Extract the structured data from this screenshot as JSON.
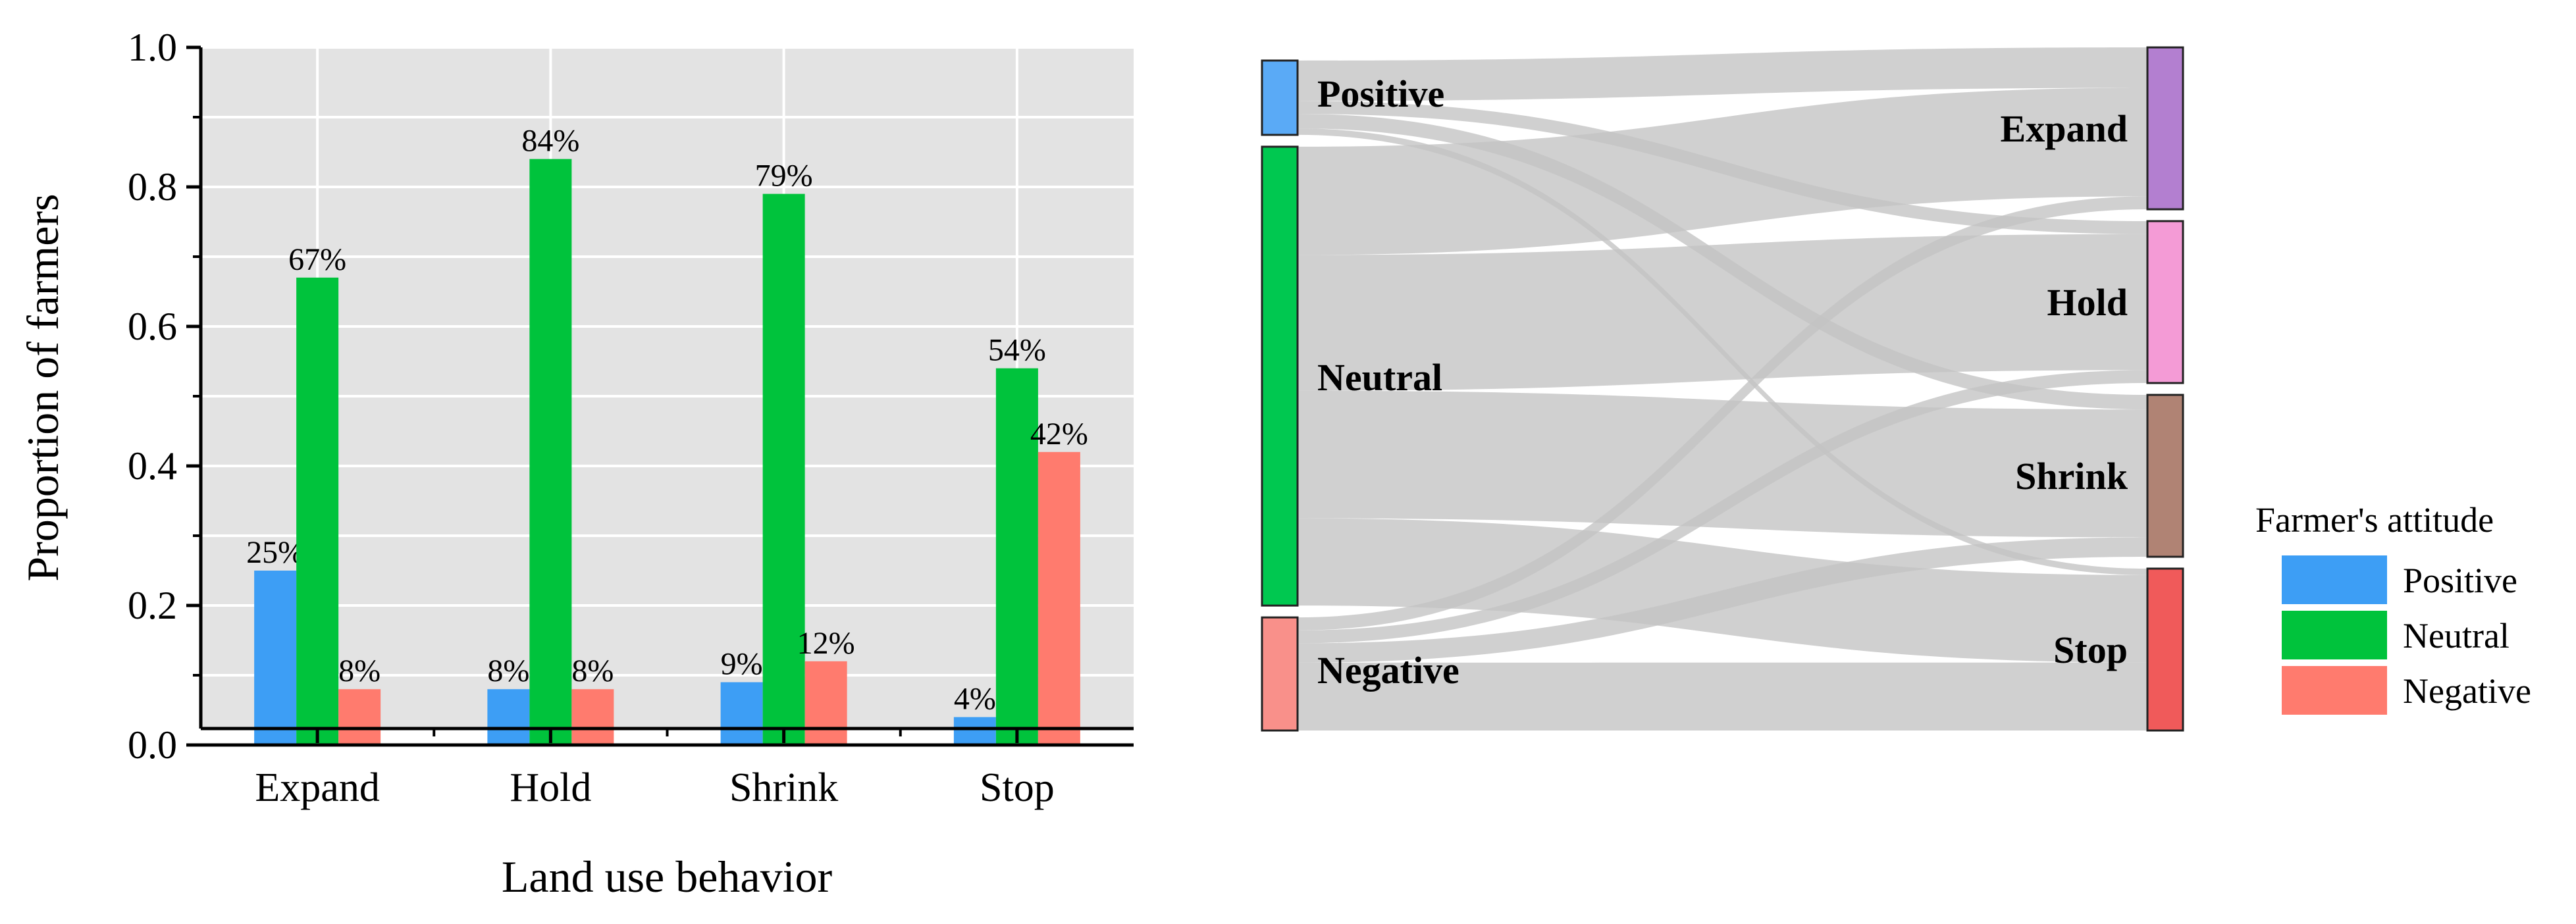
{
  "chart_data": [
    {
      "type": "bar",
      "title": "",
      "xlabel": "Land use behavior",
      "ylabel": "Proportion of farmers",
      "ylim": [
        0,
        1.0
      ],
      "yticks": [
        "0.0",
        "0.2",
        "0.4",
        "0.6",
        "0.8",
        "1.0"
      ],
      "categories": [
        "Expand",
        "Hold",
        "Shrink",
        "Stop"
      ],
      "series": [
        {
          "name": "Positive",
          "color": "#3d9ef5",
          "values": [
            0.25,
            0.08,
            0.09,
            0.04
          ],
          "labels": [
            "25%",
            "8%",
            "9%",
            "4%"
          ]
        },
        {
          "name": "Neutral",
          "color": "#00c33c",
          "values": [
            0.67,
            0.84,
            0.79,
            0.54
          ],
          "labels": [
            "67%",
            "84%",
            "79%",
            "54%"
          ]
        },
        {
          "name": "Negative",
          "color": "#ff7b6e",
          "values": [
            0.08,
            0.08,
            0.12,
            0.42
          ],
          "labels": [
            "8%",
            "8%",
            "12%",
            "42%"
          ]
        }
      ],
      "grid": true
    },
    {
      "type": "sankey",
      "sources": [
        {
          "name": "Positive",
          "color": "#5aaaf6"
        },
        {
          "name": "Neutral",
          "color": "#00c850"
        },
        {
          "name": "Negative",
          "color": "#f9908a"
        }
      ],
      "targets": [
        {
          "name": "Expand",
          "color": "#b37fd0"
        },
        {
          "name": "Hold",
          "color": "#f49bd6"
        },
        {
          "name": "Shrink",
          "color": "#b08374"
        },
        {
          "name": "Stop",
          "color": "#f05a5a"
        }
      ],
      "flows": [
        {
          "source": "Positive",
          "target": "Expand",
          "value": 0.25
        },
        {
          "source": "Positive",
          "target": "Hold",
          "value": 0.08
        },
        {
          "source": "Positive",
          "target": "Shrink",
          "value": 0.09
        },
        {
          "source": "Positive",
          "target": "Stop",
          "value": 0.04
        },
        {
          "source": "Neutral",
          "target": "Expand",
          "value": 0.67
        },
        {
          "source": "Neutral",
          "target": "Hold",
          "value": 0.84
        },
        {
          "source": "Neutral",
          "target": "Shrink",
          "value": 0.79
        },
        {
          "source": "Neutral",
          "target": "Stop",
          "value": 0.54
        },
        {
          "source": "Negative",
          "target": "Expand",
          "value": 0.08
        },
        {
          "source": "Negative",
          "target": "Hold",
          "value": 0.08
        },
        {
          "source": "Negative",
          "target": "Shrink",
          "value": 0.12
        },
        {
          "source": "Negative",
          "target": "Stop",
          "value": 0.42
        }
      ],
      "link_color": "#c3c3c3"
    }
  ],
  "legend": {
    "title": "Farmer's attitude",
    "entries": [
      {
        "label": "Positive",
        "color": "#3d9ef5"
      },
      {
        "label": "Neutral",
        "color": "#00c33c"
      },
      {
        "label": "Negative",
        "color": "#ff7b6e"
      }
    ]
  }
}
